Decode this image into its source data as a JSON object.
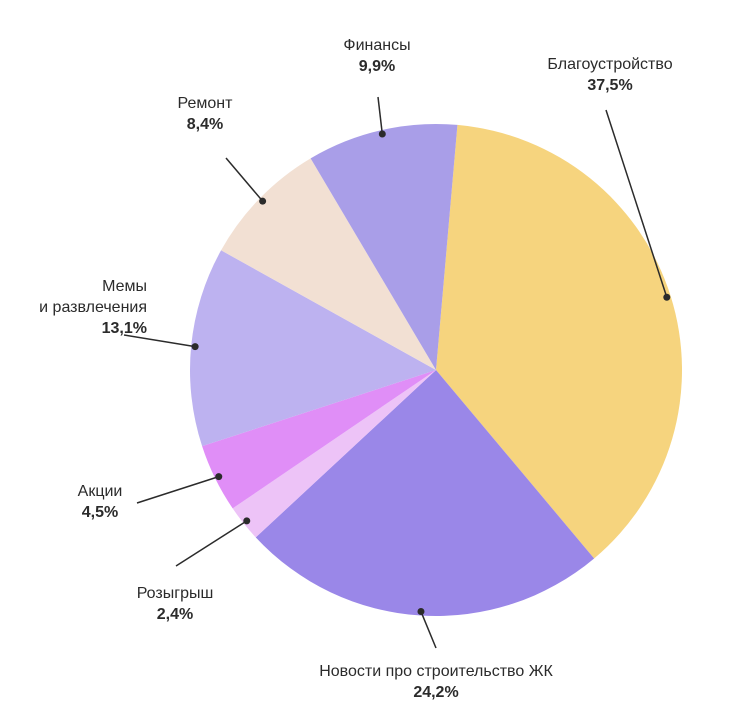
{
  "chart_data": {
    "type": "pie",
    "categories": [
      "Благоустройство",
      "Новости про строительство ЖК",
      "Розыгрыш",
      "Акции",
      "Мемы\nи развлечения",
      "Ремонт",
      "Финансы"
    ],
    "values": [
      37.5,
      24.2,
      2.4,
      4.5,
      13.1,
      8.4,
      9.9
    ],
    "value_labels": [
      "37,5%",
      "24,2%",
      "2,4%",
      "4,5%",
      "13,1%",
      "8,4%",
      "9,9%"
    ],
    "colors": [
      "#f6d47e",
      "#9a87e8",
      "#edc3f7",
      "#e08ef7",
      "#bdb2f0",
      "#f2e0d3",
      "#a99ee8"
    ]
  }
}
